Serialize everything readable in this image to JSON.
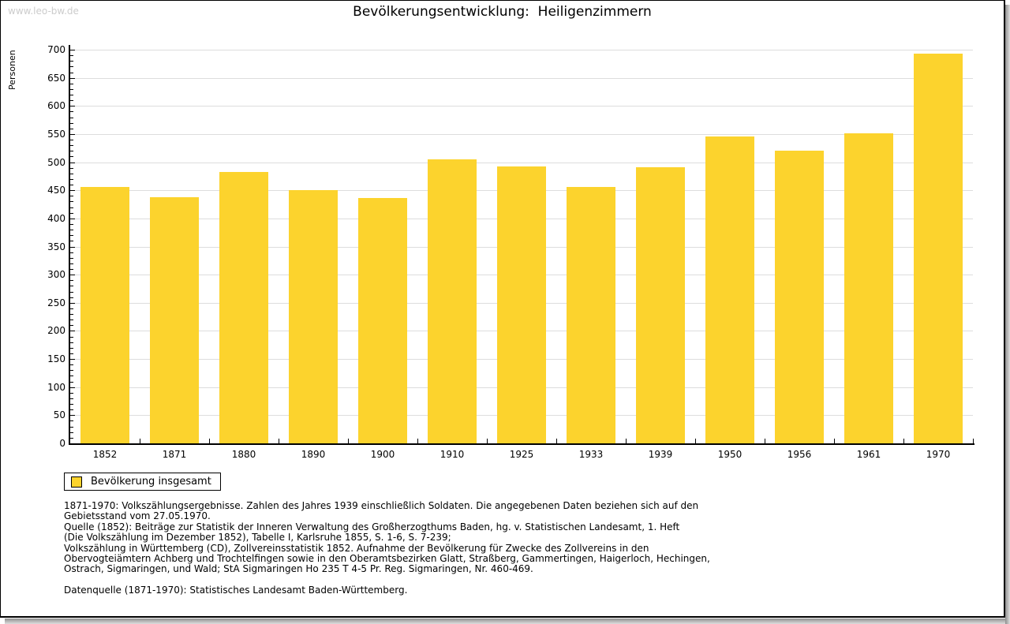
{
  "watermark": "www.leo-bw.de",
  "colors": {
    "bar": "#FCD32D",
    "grid": "#DDDDDD",
    "axis": "#000000",
    "watermark": "#CCCCCC",
    "shadow": "#8F8F8F"
  },
  "chart_data": {
    "type": "bar",
    "title": "Bevölkerungsentwicklung:  Heiligenzimmern",
    "ylabel": "Personen",
    "xlabel": "",
    "categories": [
      "1852",
      "1871",
      "1880",
      "1890",
      "1900",
      "1910",
      "1925",
      "1933",
      "1939",
      "1950",
      "1956",
      "1961",
      "1970"
    ],
    "values": [
      456,
      437,
      482,
      451,
      436,
      505,
      492,
      456,
      491,
      545,
      521,
      552,
      693
    ],
    "ylim": [
      0,
      700
    ],
    "ytick_step": 50,
    "yminor_step": 10,
    "grid": "horizontal-major",
    "legend_label": "Bevölkerung insgesamt",
    "legend_position": "bottom-left"
  },
  "footnotes": [
    "1871-1970: Volkszählungsergebnisse. Zahlen des Jahres 1939 einschließlich Soldaten. Die angegebenen Daten beziehen sich auf den",
    "Gebietsstand vom 27.05.1970.",
    "Quelle (1852): Beiträge zur Statistik der Inneren Verwaltung des Großherzogthums Baden, hg. v. Statistischen Landesamt, 1. Heft",
    "(Die Volkszählung im Dezember 1852), Tabelle I, Karlsruhe 1855, S. 1-6, S. 7-239;",
    "Volkszählung in Württemberg (CD), Zollvereinsstatistik 1852. Aufnahme der Bevölkerung für Zwecke des Zollvereins in den",
    "Obervogteiämtern Achberg und Trochtelfingen sowie in den Oberamtsbezirken Glatt, Straßberg, Gammertingen, Haigerloch, Hechingen,",
    "Ostrach, Sigmaringen, und Wald; StA Sigmaringen Ho 235 T 4-5 Pr. Reg. Sigmaringen, Nr. 460-469."
  ],
  "source_note": "Datenquelle (1871-1970): Statistisches Landesamt Baden-Württemberg."
}
